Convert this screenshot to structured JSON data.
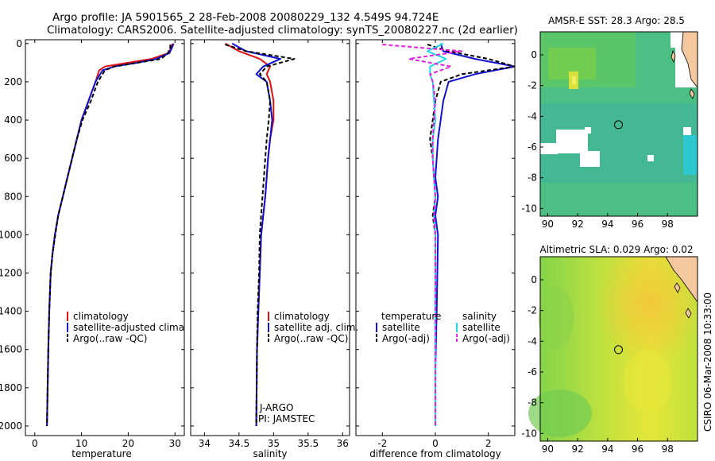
{
  "header": {
    "title_line1": "Argo profile: JA 5901565_2 28-Feb-2008 20080229_132 4.549S 94.724E",
    "title_line2": "Climatology: CARS2006. Satellite-adjusted climatology: synTS_20080227.nc (2d earlier)"
  },
  "side_label": "CSIRO 06-Mar-2008 10:33:00",
  "colors": {
    "climatology": "#e01010",
    "satellite": "#1010d0",
    "argo": "#000000",
    "sal_sat": "#20d8e8",
    "sal_argo": "#e020e0"
  },
  "chart_data": [
    {
      "id": "temperature",
      "type": "line",
      "xlabel": "temperature",
      "ylabel": "",
      "xlim": [
        -2,
        32
      ],
      "ylim": [
        2050,
        -20
      ],
      "y_inverted": true,
      "xticks": [
        0,
        10,
        20,
        30
      ],
      "yticks": [
        0,
        200,
        400,
        600,
        800,
        1000,
        1200,
        1400,
        1600,
        1800,
        2000
      ],
      "legend": [
        "climatology",
        "satellite-adjusted climatology",
        "Argo(..raw -QC)"
      ],
      "series": [
        {
          "name": "climatology",
          "color_key": "climatology",
          "dash": "",
          "x": [
            29.5,
            29.2,
            28.6,
            25,
            20,
            15,
            13.8,
            13,
            11.5,
            10,
            9,
            8,
            7,
            6,
            5,
            4.3,
            3.8,
            3.4,
            3.1,
            2.9,
            2.6
          ],
          "y": [
            0,
            20,
            50,
            80,
            100,
            120,
            140,
            200,
            300,
            400,
            500,
            600,
            700,
            800,
            900,
            1000,
            1100,
            1200,
            1400,
            1600,
            2000
          ]
        },
        {
          "name": "satellite-adjusted climatology",
          "color_key": "satellite",
          "dash": "",
          "x": [
            29.7,
            29.4,
            28.8,
            26,
            22,
            17,
            14.5,
            13,
            11.5,
            10,
            9,
            8,
            7,
            6,
            5,
            4.3,
            3.8,
            3.4,
            3.1,
            2.9,
            2.6
          ],
          "y": [
            0,
            20,
            50,
            80,
            100,
            120,
            140,
            200,
            300,
            400,
            500,
            600,
            700,
            800,
            900,
            1000,
            1100,
            1200,
            1400,
            1600,
            2000
          ]
        },
        {
          "name": "Argo(..raw -QC)",
          "color_key": "argo",
          "dash": "5,3",
          "x": [
            29,
            29,
            28.5,
            27,
            22,
            17,
            15,
            13.5,
            12,
            10.2,
            9,
            8,
            7,
            6,
            5,
            4.4,
            3.8,
            3.4,
            3.1,
            2.9,
            2.6
          ],
          "y": [
            5,
            20,
            50,
            80,
            100,
            120,
            140,
            200,
            300,
            400,
            500,
            600,
            700,
            800,
            900,
            1000,
            1100,
            1200,
            1400,
            1600,
            2000
          ]
        }
      ]
    },
    {
      "id": "salinity",
      "type": "line",
      "xlabel": "salinity",
      "ylabel": "",
      "xlim": [
        33.8,
        36.1
      ],
      "ylim": [
        2050,
        -20
      ],
      "y_inverted": true,
      "xticks": [
        34,
        34.5,
        35,
        35.5,
        36
      ],
      "yticks": [
        0,
        200,
        400,
        600,
        800,
        1000,
        1200,
        1400,
        1600,
        1800,
        2000
      ],
      "legend": [
        "climatology",
        "satellite adj. clim.",
        "Argo(..raw -QC)"
      ],
      "annotations": [
        "J-ARGO",
        "PI: JAMSTEC"
      ],
      "series": [
        {
          "name": "climatology",
          "color_key": "climatology",
          "dash": "",
          "x": [
            34.3,
            34.5,
            34.8,
            34.95,
            34.9,
            34.95,
            35.0,
            35.0,
            34.95,
            34.92,
            34.9,
            34.88,
            34.85,
            34.82,
            34.8,
            34.78,
            34.76,
            34.75
          ],
          "y": [
            0,
            40,
            80,
            120,
            160,
            200,
            300,
            400,
            500,
            600,
            700,
            800,
            900,
            1000,
            1200,
            1400,
            1600,
            2000
          ]
        },
        {
          "name": "satellite adj. clim.",
          "color_key": "satellite",
          "dash": "",
          "x": [
            34.4,
            34.6,
            35.1,
            34.85,
            34.75,
            34.9,
            34.95,
            34.98,
            34.95,
            34.92,
            34.9,
            34.88,
            34.85,
            34.82,
            34.8,
            34.78,
            34.76,
            34.75
          ],
          "y": [
            0,
            40,
            80,
            120,
            160,
            200,
            300,
            400,
            500,
            600,
            700,
            800,
            900,
            1000,
            1200,
            1400,
            1600,
            2000
          ]
        },
        {
          "name": "Argo(..raw -QC)",
          "color_key": "argo",
          "dash": "5,3",
          "x": [
            34.3,
            34.6,
            35.3,
            34.9,
            34.8,
            34.9,
            34.95,
            34.93,
            34.9,
            34.88,
            34.86,
            34.84,
            34.82,
            34.8,
            34.79,
            34.77,
            34.76,
            34.75
          ],
          "y": [
            5,
            40,
            80,
            120,
            160,
            200,
            300,
            400,
            500,
            600,
            700,
            800,
            900,
            1000,
            1200,
            1400,
            1600,
            2000
          ]
        }
      ]
    },
    {
      "id": "difference",
      "type": "line",
      "xlabel": "difference from climatology",
      "ylabel": "",
      "xlim": [
        -3,
        3
      ],
      "ylim": [
        2050,
        -20
      ],
      "y_inverted": true,
      "xticks": [
        -2,
        0,
        2
      ],
      "yticks": [
        0,
        200,
        400,
        600,
        800,
        1000,
        1200,
        1400,
        1600,
        1800,
        2000
      ],
      "legend_headers": [
        "temperature",
        "salinity"
      ],
      "legend": [
        "satellite",
        "Argo(-adj)",
        "satellite",
        "Argo(-adj)"
      ],
      "series": [
        {
          "name": "temperature satellite",
          "color_key": "satellite",
          "dash": "",
          "x": [
            0.2,
            0.3,
            1.5,
            3,
            1.5,
            0.5,
            0.3,
            0.2,
            0.1,
            0.05,
            0,
            0.1,
            0,
            0.1,
            0.05,
            0,
            0
          ],
          "y": [
            0,
            40,
            80,
            120,
            160,
            200,
            300,
            400,
            500,
            600,
            700,
            800,
            900,
            1000,
            1400,
            1700,
            2000
          ]
        },
        {
          "name": "temperature Argo(-adj)",
          "color_key": "argo",
          "dash": "5,3",
          "x": [
            -0.3,
            0.5,
            2,
            3,
            1,
            0.2,
            0,
            -0.1,
            -0.2,
            -0.1,
            -0.05,
            0,
            -0.1,
            0,
            0,
            0,
            0
          ],
          "y": [
            5,
            40,
            80,
            120,
            160,
            200,
            300,
            400,
            500,
            600,
            700,
            800,
            900,
            1000,
            1400,
            1700,
            2000
          ]
        },
        {
          "name": "salinity satellite",
          "color_key": "sal_sat",
          "dash": "",
          "x": [
            0.3,
            -0.3,
            0.4,
            -0.2,
            -0.2,
            -0.1,
            -0.05,
            0,
            -0.1,
            -0.1,
            -0.05,
            0,
            -0.05,
            0,
            0,
            0,
            0
          ],
          "y": [
            0,
            40,
            80,
            120,
            160,
            200,
            300,
            400,
            500,
            600,
            700,
            800,
            900,
            1000,
            1400,
            1700,
            2000
          ]
        },
        {
          "name": "salinity Argo(-adj)",
          "color_key": "sal_argo",
          "dash": "5,3",
          "x": [
            -2,
            1,
            -1,
            0.6,
            -0.2,
            -0.1,
            0,
            -0.05,
            -0.1,
            -0.1,
            -0.05,
            0,
            -0.05,
            0,
            0,
            0,
            0
          ],
          "y": [
            5,
            40,
            80,
            120,
            160,
            200,
            300,
            400,
            500,
            600,
            700,
            800,
            900,
            1000,
            1400,
            1700,
            2000
          ]
        }
      ]
    },
    {
      "id": "sst_map",
      "type": "heatmap",
      "title": "AMSR-E SST: 28.3 Argo: 28.5",
      "xlim": [
        89.5,
        100
      ],
      "ylim": [
        -10.5,
        1.5
      ],
      "xticks": [
        90,
        92,
        94,
        96,
        98
      ],
      "yticks": [
        0,
        -2,
        -4,
        -6,
        -8,
        -10
      ],
      "marker": {
        "lon": 94.724,
        "lat": -4.549
      }
    },
    {
      "id": "sla_map",
      "type": "heatmap",
      "title": "Altimetric SLA: 0.029 Argo: 0.02",
      "xlim": [
        89.5,
        100
      ],
      "ylim": [
        -10.5,
        1.5
      ],
      "xticks": [
        90,
        92,
        94,
        96,
        98
      ],
      "yticks": [
        0,
        -2,
        -4,
        -6,
        -8,
        -10
      ],
      "marker": {
        "lon": 94.724,
        "lat": -4.549
      }
    }
  ]
}
